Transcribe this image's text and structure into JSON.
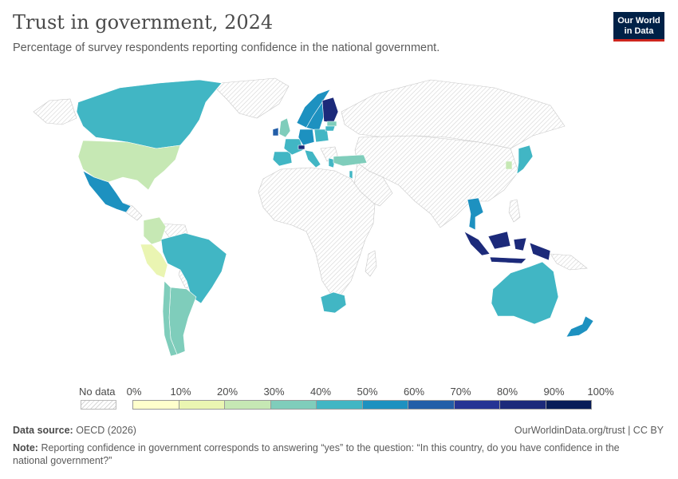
{
  "header": {
    "title": "Trust in government, 2024",
    "subtitle": "Percentage of survey respondents reporting confidence in the national government."
  },
  "logo": {
    "line1": "Our World",
    "line2": "in Data",
    "bg": "#002147",
    "accent": "#ce261e"
  },
  "legend": {
    "no_data_label": "No data",
    "ticks": [
      "0%",
      "10%",
      "20%",
      "30%",
      "40%",
      "50%",
      "60%",
      "70%",
      "80%",
      "90%",
      "100%"
    ],
    "colors": [
      "#ffffcc",
      "#eaf5b2",
      "#c6e8b4",
      "#7fcdbb",
      "#41b6c4",
      "#1d91c0",
      "#225ea8",
      "#253494",
      "#1c2a7a",
      "#081d58"
    ]
  },
  "map_data": {
    "type": "choropleth",
    "unit": "%",
    "countries": [
      {
        "name": "Canada",
        "bin": 4
      },
      {
        "name": "United States",
        "bin": 2
      },
      {
        "name": "Mexico",
        "bin": 5
      },
      {
        "name": "Colombia",
        "bin": 2
      },
      {
        "name": "Peru",
        "bin": 1
      },
      {
        "name": "Brazil",
        "bin": 4
      },
      {
        "name": "Chile",
        "bin": 3
      },
      {
        "name": "Argentina",
        "bin": 3
      },
      {
        "name": "Norway",
        "bin": 5
      },
      {
        "name": "Sweden",
        "bin": 5
      },
      {
        "name": "Finland",
        "bin": 8
      },
      {
        "name": "United Kingdom",
        "bin": 3
      },
      {
        "name": "Ireland",
        "bin": 6
      },
      {
        "name": "Spain",
        "bin": 4
      },
      {
        "name": "France",
        "bin": 4
      },
      {
        "name": "Germany",
        "bin": 5
      },
      {
        "name": "Switzerland",
        "bin": 8
      },
      {
        "name": "Italy",
        "bin": 4
      },
      {
        "name": "Greece",
        "bin": 4
      },
      {
        "name": "Poland",
        "bin": 4
      },
      {
        "name": "Latvia",
        "bin": 3
      },
      {
        "name": "Lithuania",
        "bin": 4
      },
      {
        "name": "Turkey",
        "bin": 3
      },
      {
        "name": "Israel",
        "bin": 4
      },
      {
        "name": "South Africa",
        "bin": 4
      },
      {
        "name": "Thailand",
        "bin": 5
      },
      {
        "name": "Indonesia",
        "bin": 8
      },
      {
        "name": "South Korea",
        "bin": 2
      },
      {
        "name": "Japan",
        "bin": 4
      },
      {
        "name": "Australia",
        "bin": 4
      },
      {
        "name": "New Zealand",
        "bin": 5
      }
    ]
  },
  "footer": {
    "source_label": "Data source:",
    "source_value": "OECD (2026)",
    "link": "OurWorldinData.org/trust | CC BY",
    "note_label": "Note:",
    "note_text": "Reporting confidence in government corresponds to answering “yes” to the question: “In this country, do you have confidence in the national government?”"
  }
}
